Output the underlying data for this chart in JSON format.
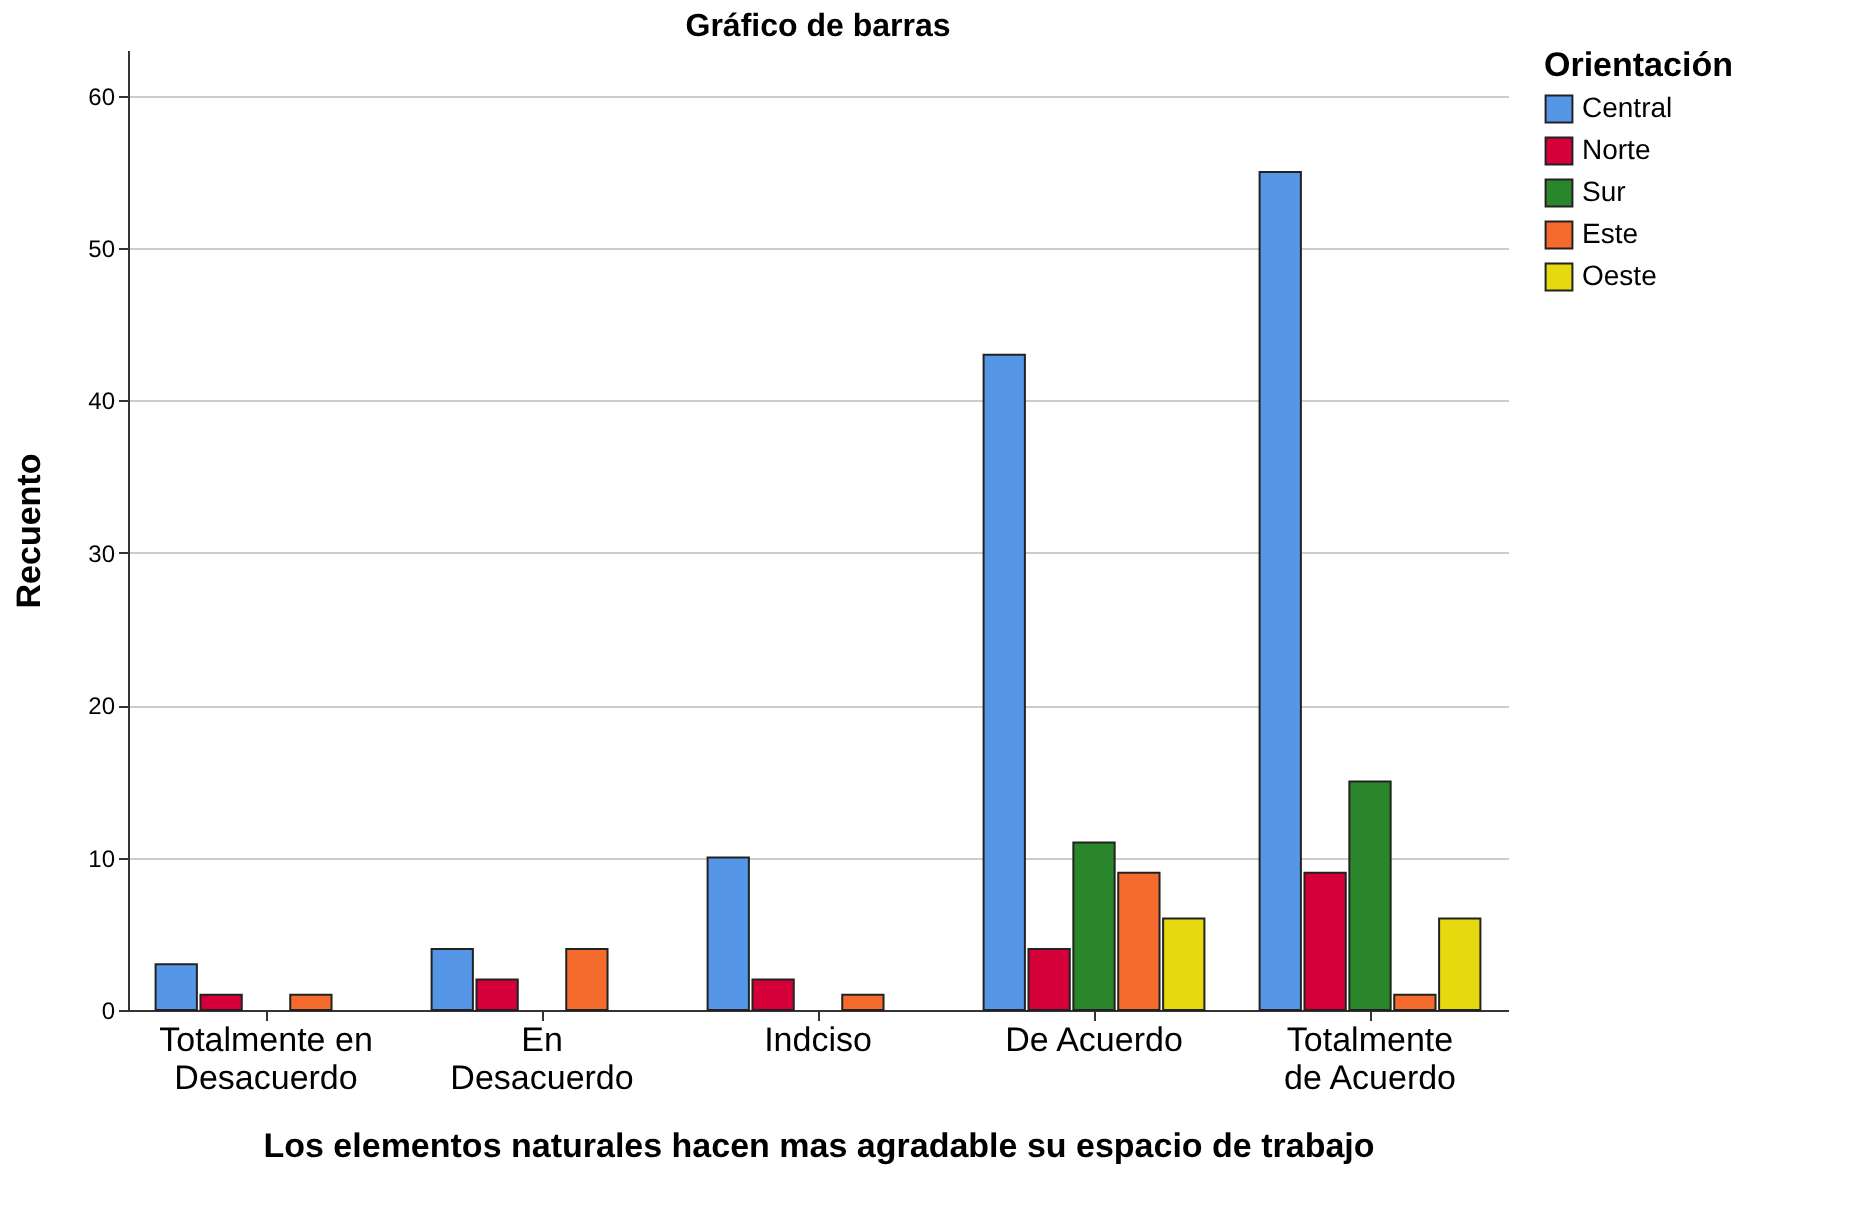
{
  "chart_data": {
    "type": "bar",
    "title": "Gráfico de barras",
    "xlabel": "Los elementos naturales hacen mas agradable su espacio de trabajo",
    "ylabel": "Recuento",
    "legend_title": "Orientación",
    "categories": [
      "Totalmente en\nDesacuerdo",
      "En\nDesacuerdo",
      "Indciso",
      "De Acuerdo",
      "Totalmente\nde Acuerdo"
    ],
    "series": [
      {
        "name": "Central",
        "color": "#5596e6",
        "values": [
          3,
          4,
          10,
          43,
          55
        ]
      },
      {
        "name": "Norte",
        "color": "#d5003a",
        "values": [
          1,
          2,
          2,
          4,
          9
        ]
      },
      {
        "name": "Sur",
        "color": "#2a862a",
        "values": [
          null,
          null,
          null,
          11,
          15
        ]
      },
      {
        "name": "Este",
        "color": "#f46b2d",
        "values": [
          1,
          4,
          1,
          9,
          1
        ]
      },
      {
        "name": "Oeste",
        "color": "#e5d910",
        "values": [
          null,
          null,
          null,
          6,
          6
        ]
      }
    ],
    "ylim": [
      0,
      63
    ],
    "yticks": [
      0,
      10,
      20,
      30,
      40,
      50,
      60
    ],
    "grid": "y",
    "legend": "top right"
  }
}
